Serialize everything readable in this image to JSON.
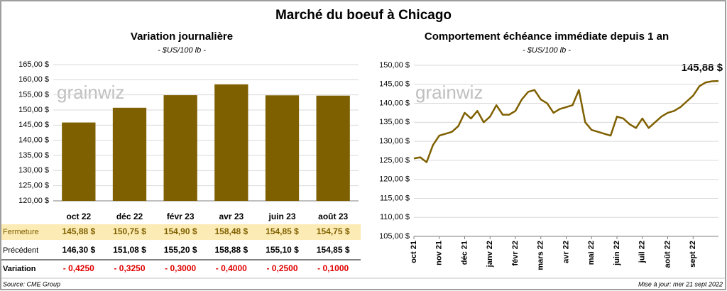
{
  "title": "Marché du boeuf à Chicago",
  "watermark": "grainwiz",
  "source": "Source: CME Group",
  "updated": "Mise à jour: mer 21 sept 2022",
  "chart_data": [
    {
      "type": "bar",
      "title": "Variation journalière",
      "subtitle": "- $US/100 lb -",
      "categories": [
        "oct 22",
        "déc 22",
        "févr 23",
        "avr 23",
        "juin 23",
        "août 23"
      ],
      "values": [
        145.88,
        150.75,
        154.9,
        158.48,
        154.85,
        154.75
      ],
      "color": "#7f6000",
      "ylim": [
        120,
        165
      ],
      "yticks": [
        {
          "value": 120,
          "label": "120,00 $"
        },
        {
          "value": 125,
          "label": "125,00 $"
        },
        {
          "value": 130,
          "label": "130,00 $"
        },
        {
          "value": 135,
          "label": "135,00 $"
        },
        {
          "value": 140,
          "label": "140,00 $"
        },
        {
          "value": 145,
          "label": "145,00 $"
        },
        {
          "value": 150,
          "label": "150,00 $"
        },
        {
          "value": 155,
          "label": "155,00 $"
        },
        {
          "value": 160,
          "label": "160,00 $"
        },
        {
          "value": 165,
          "label": "165,00 $"
        }
      ],
      "grid": true
    },
    {
      "type": "line",
      "title": "Comportement échéance immédiate depuis 1 an",
      "subtitle": "- $US/100 lb -",
      "annotation": "145,88 $",
      "color": "#7f6000",
      "xlim": [
        0,
        12
      ],
      "xticks": [
        {
          "value": 0,
          "label": "oct 21"
        },
        {
          "value": 1,
          "label": "nov 21"
        },
        {
          "value": 2,
          "label": "déc 21"
        },
        {
          "value": 3,
          "label": "janv 22"
        },
        {
          "value": 4,
          "label": "févr 22"
        },
        {
          "value": 5,
          "label": "mars 22"
        },
        {
          "value": 6,
          "label": "avr 22"
        },
        {
          "value": 7,
          "label": "mai 22"
        },
        {
          "value": 8,
          "label": "juin 22"
        },
        {
          "value": 9,
          "label": "juil 22"
        },
        {
          "value": 10,
          "label": "août 22"
        },
        {
          "value": 11,
          "label": "sept 22"
        }
      ],
      "x": [
        0,
        0.25,
        0.5,
        0.75,
        1,
        1.25,
        1.5,
        1.75,
        2,
        2.25,
        2.5,
        2.75,
        3,
        3.25,
        3.5,
        3.75,
        4,
        4.25,
        4.5,
        4.75,
        5,
        5.25,
        5.5,
        5.75,
        6,
        6.25,
        6.5,
        6.75,
        7,
        7.25,
        7.5,
        7.75,
        8,
        8.25,
        8.5,
        8.75,
        9,
        9.25,
        9.5,
        9.75,
        10,
        10.25,
        10.5,
        10.75,
        11,
        11.25,
        11.5,
        11.75,
        12
      ],
      "values": [
        125.5,
        125.8,
        124.5,
        129,
        131.5,
        132,
        132.5,
        134,
        137.5,
        136,
        138,
        135,
        136.5,
        139.5,
        137,
        137,
        138,
        141,
        143,
        143.5,
        141,
        140,
        137.5,
        138.5,
        139,
        139.5,
        143.5,
        135,
        133,
        132.5,
        132,
        131.5,
        136.5,
        136,
        134.5,
        133.5,
        136,
        133.5,
        135,
        136.5,
        137.5,
        138,
        139,
        140.5,
        142,
        144.5,
        145.5,
        145.8,
        145.88
      ],
      "ylim": [
        105,
        150
      ],
      "yticks": [
        {
          "value": 105,
          "label": "105,00 $"
        },
        {
          "value": 110,
          "label": "110,00 $"
        },
        {
          "value": 115,
          "label": "115,00 $"
        },
        {
          "value": 120,
          "label": "120,00 $"
        },
        {
          "value": 125,
          "label": "125,00 $"
        },
        {
          "value": 130,
          "label": "130,00 $"
        },
        {
          "value": 135,
          "label": "135,00 $"
        },
        {
          "value": 140,
          "label": "140,00 $"
        },
        {
          "value": 145,
          "label": "145,00 $"
        },
        {
          "value": 150,
          "label": "150,00 $"
        }
      ],
      "grid": true
    }
  ],
  "table": {
    "rows": [
      {
        "label": "Fermeture",
        "cells": [
          "145,88 $",
          "150,75 $",
          "154,90 $",
          "158,48 $",
          "154,85 $",
          "154,75 $"
        ]
      },
      {
        "label": "Précédent",
        "cells": [
          "146,30 $",
          "151,08 $",
          "155,20 $",
          "158,88 $",
          "155,10 $",
          "154,85 $"
        ]
      },
      {
        "label": "Variation",
        "cells": [
          "- 0,4250",
          "- 0,3250",
          "- 0,3000",
          "- 0,4000",
          "- 0,2500",
          "- 0,1000"
        ]
      }
    ]
  }
}
